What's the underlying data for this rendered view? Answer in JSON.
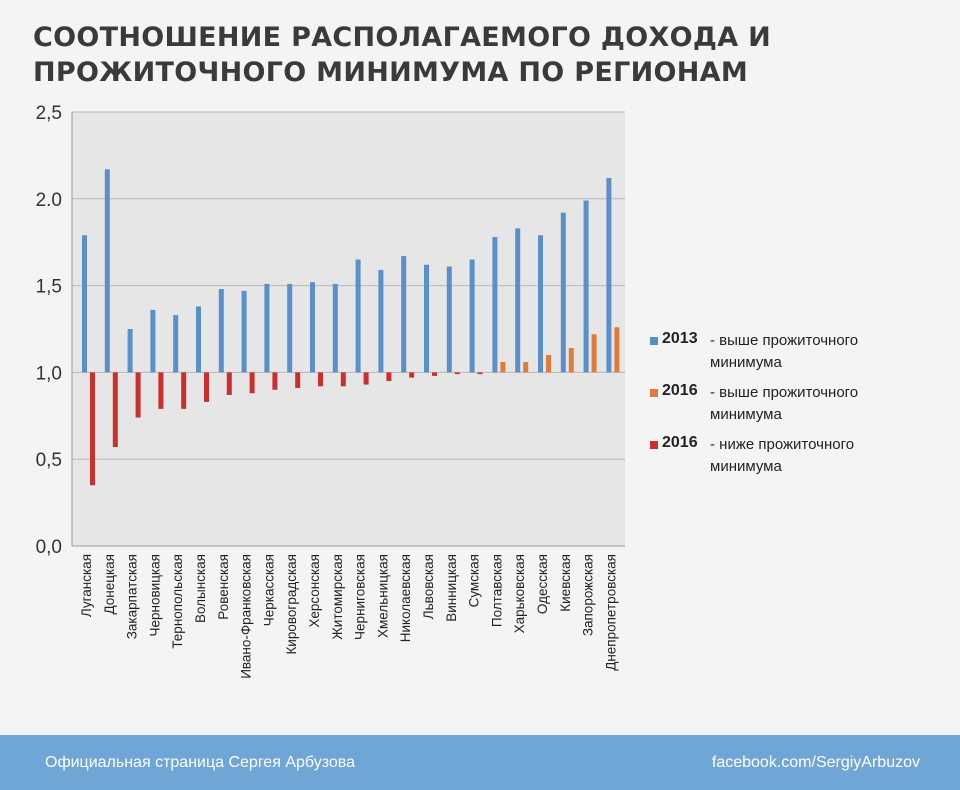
{
  "title_lines": [
    "СООТНОШЕНИЕ РАСПОЛАГАЕМОГО ДОХОДА И",
    "ПРОЖИТОЧНОГО МИНИМУМА ПО РЕГИОНАМ"
  ],
  "legend": [
    {
      "year": "2013",
      "text": "- выше прожиточного\n  минимума",
      "color": "#5b8fc9"
    },
    {
      "year": "2016",
      "text": "- выше прожиточного\n  минимума",
      "color": "#e07b39"
    },
    {
      "year": "2016",
      "text": "- ниже прожиточного\n  минимума",
      "color": "#c9302c"
    }
  ],
  "footer": {
    "left": "Официальная страница Сергея Арбузова",
    "right": "facebook.com/SergiyArbuzov"
  },
  "chart_data": {
    "type": "bar",
    "ylim": [
      0,
      2.5
    ],
    "yticks": [
      "0,0",
      "0,5",
      "1,0",
      "1,5",
      "2.0",
      "2,5"
    ],
    "ytick_values": [
      0,
      0.5,
      1.0,
      1.5,
      2.0,
      2.5
    ],
    "baseline": 1.0,
    "grid": true,
    "legend_position": "right",
    "categories": [
      "Луганская",
      "Донецкая",
      "Закарпатская",
      "Черновицкая",
      "Тернопольская",
      "Волынская",
      "Ровенская",
      "Ивано-Франковская",
      "Черкасская",
      "Кировоградская",
      "Херсонская",
      "Житомирская",
      "Черниговская",
      "Хмельницкая",
      "Николаевская",
      "Львовская",
      "Винницкая",
      "Сумская",
      "Полтавская",
      "Харьковская",
      "Одесская",
      "Киевская",
      "Запорожская",
      "Днепропетровская"
    ],
    "series": [
      {
        "name": "2013",
        "color": "#5b8fc9",
        "values": [
          1.79,
          2.17,
          1.25,
          1.36,
          1.33,
          1.38,
          1.48,
          1.47,
          1.51,
          1.51,
          1.52,
          1.51,
          1.65,
          1.59,
          1.67,
          1.62,
          1.61,
          1.65,
          1.78,
          1.83,
          1.79,
          1.92,
          1.99,
          2.12
        ]
      },
      {
        "name": "2016",
        "values": [
          0.35,
          0.57,
          0.74,
          0.79,
          0.79,
          0.83,
          0.87,
          0.88,
          0.9,
          0.91,
          0.92,
          0.92,
          0.93,
          0.95,
          0.97,
          0.98,
          0.99,
          0.99,
          1.06,
          1.06,
          1.1,
          1.14,
          1.22,
          1.26
        ]
      }
    ],
    "above_color": "#e07b39",
    "below_color": "#c9302c"
  }
}
